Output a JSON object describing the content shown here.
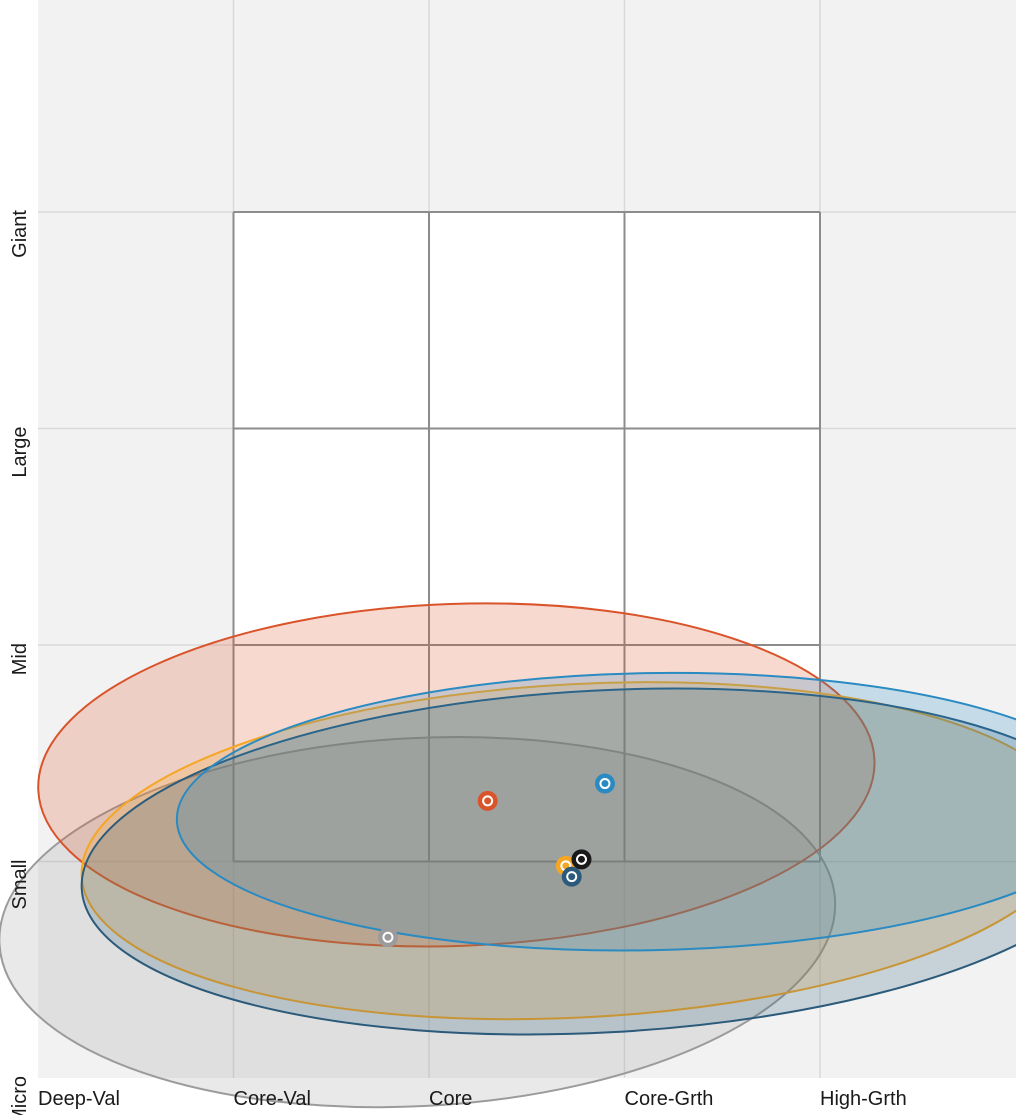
{
  "chart_data": {
    "type": "scatter",
    "subtype": "style-box-ownership-zones",
    "x_axis": {
      "ticks": [
        "Deep-Val",
        "Core-Val",
        "Core",
        "Core-Grth",
        "High-Grth"
      ],
      "range": [
        0,
        5
      ]
    },
    "y_axis": {
      "ticks": [
        "Micro",
        "Small",
        "Mid",
        "Large",
        "Giant"
      ],
      "range": [
        0,
        5
      ]
    },
    "grid": true,
    "style_box": {
      "x_range": [
        1,
        4
      ],
      "y_range": [
        1,
        4
      ]
    },
    "colors": {
      "plot_background": "#f2f2f2",
      "box_fill": "#ffffff",
      "box_stroke": "#8c8c8c",
      "grid": "#d9d9d9"
    },
    "series": [
      {
        "color": "#9b9b9b",
        "centroid": {
          "x": 1.79,
          "y": 0.65
        },
        "zone": {
          "cx": 1.94,
          "cy": 0.72,
          "rx": 2.14,
          "ry": 0.85,
          "rotation_deg": -3
        }
      },
      {
        "color": "#d9542b",
        "centroid": {
          "x": 2.3,
          "y": 1.28
        },
        "zone": {
          "cx": 2.14,
          "cy": 1.4,
          "rx": 2.14,
          "ry": 0.79,
          "rotation_deg": -2
        }
      },
      {
        "color": "#f5a623",
        "centroid": {
          "x": 2.7,
          "y": 0.98
        },
        "zone": {
          "cx": 2.77,
          "cy": 1.05,
          "rx": 2.55,
          "ry": 0.77,
          "rotation_deg": -3
        }
      },
      {
        "color": "#2b5a7a",
        "centroid": {
          "x": 2.73,
          "y": 0.93
        },
        "zone": {
          "cx": 2.88,
          "cy": 1.0,
          "rx": 2.66,
          "ry": 0.79,
          "rotation_deg": -3
        }
      },
      {
        "color": "#1a1a1a",
        "centroid": {
          "x": 2.78,
          "y": 1.01
        },
        "zone": null
      },
      {
        "color": "#2a8ac2",
        "centroid": {
          "x": 2.9,
          "y": 1.36
        },
        "zone": {
          "cx": 3.12,
          "cy": 1.23,
          "rx": 2.41,
          "ry": 0.64,
          "rotation_deg": -1
        }
      }
    ]
  }
}
